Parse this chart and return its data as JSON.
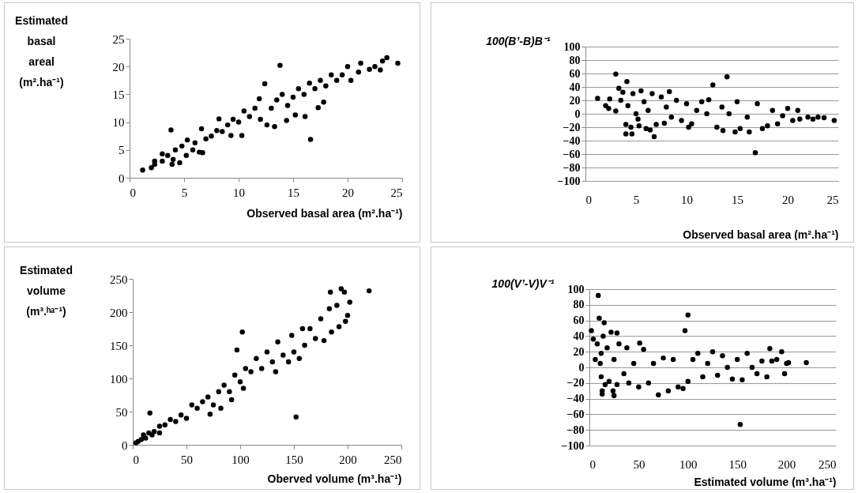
{
  "chart_data": [
    {
      "type": "scatter",
      "xlabel": "Observed basal area (m².ha⁻¹)",
      "ylabel": "Estimated\nbasal\nareal\n(m².ha⁻¹)",
      "xlim": [
        0,
        25
      ],
      "ylim": [
        0,
        25
      ],
      "xticks": [
        0,
        5,
        10,
        15,
        20,
        25
      ],
      "yticks": [
        0,
        5,
        10,
        15,
        20,
        25
      ],
      "grid": false,
      "marker": "circle",
      "series": [
        {
          "color": "#000000",
          "x": [
            1.2,
            2,
            2.3,
            2.3,
            3,
            3,
            3.5,
            3.8,
            3.9,
            4,
            4.2,
            4.6,
            4.8,
            5.2,
            5.3,
            5.8,
            6,
            6.4,
            6.6,
            6.7,
            7,
            7.5,
            8,
            8.2,
            8.5,
            9,
            9.3,
            9.5,
            10,
            10.3,
            10.5,
            11,
            11.5,
            11.9,
            12,
            12.4,
            12.6,
            13,
            13.3,
            13.5,
            13.8,
            14,
            14.4,
            14.5,
            15,
            15.2,
            15.5,
            16,
            16.1,
            16.5,
            16.6,
            17,
            17.3,
            17.5,
            17.8,
            18,
            18.5,
            19,
            19.5,
            20,
            20.3,
            21,
            21.2,
            22,
            22.5,
            23,
            23.2,
            23.6,
            24.6
          ],
          "values": [
            1.4,
            1.8,
            2.4,
            3,
            3,
            4.3,
            4,
            8.6,
            2.4,
            3.3,
            5,
            2.7,
            5.7,
            4,
            6.8,
            5,
            6.3,
            4.6,
            8.8,
            4.5,
            7,
            7.5,
            8.5,
            10.6,
            8.3,
            9.5,
            7.6,
            10.5,
            10,
            7.6,
            12,
            11,
            12.5,
            14.2,
            10.5,
            16.9,
            9.5,
            12.5,
            9.2,
            14,
            20.2,
            15,
            10.3,
            13,
            14.5,
            11.3,
            16,
            15,
            11,
            17,
            6.9,
            16,
            12.6,
            17.5,
            13.6,
            16.5,
            18.5,
            17.5,
            18.5,
            20,
            17.5,
            19,
            20.6,
            19.5,
            20,
            19.4,
            21,
            21.6,
            20.6
          ]
        }
      ]
    },
    {
      "type": "scatter",
      "xlabel": "Observed basal area (m².ha⁻¹)",
      "ylabel": "100(B’-B)B⁻¹",
      "xlim": [
        0,
        25
      ],
      "ylim": [
        -100,
        100
      ],
      "xticks": [
        0,
        5,
        10,
        15,
        20,
        25
      ],
      "yticks": [
        -100,
        -80,
        -60,
        -40,
        -20,
        0,
        20,
        40,
        60,
        80,
        100
      ],
      "grid": "y",
      "marker": "circle",
      "series": [
        {
          "color": "#000000",
          "x": [
            1.2,
            2,
            2.3,
            2.4,
            3,
            3,
            3.3,
            3.5,
            3.7,
            4,
            4,
            4.1,
            4.2,
            4.5,
            4.6,
            4.7,
            5,
            5.2,
            5.3,
            5.5,
            5.8,
            6,
            6.2,
            6.4,
            6.6,
            6.8,
            7,
            7.5,
            7.8,
            8,
            8.3,
            8.5,
            9,
            9.5,
            10,
            10.2,
            10.5,
            11,
            11.5,
            12,
            12.2,
            12.6,
            13,
            13.5,
            13.6,
            14,
            14.2,
            14.8,
            15,
            15.3,
            16,
            16.2,
            16.8,
            17,
            17.5,
            18,
            18.5,
            19,
            19.5,
            20,
            20.5,
            21,
            21.2,
            22,
            22.5,
            23,
            23.6,
            24.6
          ],
          "values": [
            23,
            12,
            8,
            22,
            4,
            59,
            38,
            20,
            32,
            -30,
            -16,
            48,
            12,
            -20,
            -30,
            30,
            0,
            -8,
            -18,
            34,
            18,
            -22,
            5,
            -24,
            30,
            -34,
            -16,
            25,
            -14,
            10,
            33,
            -5,
            20,
            -10,
            15,
            -20,
            -15,
            5,
            18,
            0,
            21,
            43,
            -20,
            10,
            -25,
            55,
            0,
            -27,
            18,
            -22,
            -5,
            -27,
            -58,
            15,
            -22,
            -18,
            5,
            -15,
            -3,
            8,
            -10,
            5,
            -8,
            -5,
            -8,
            -5,
            -6,
            -10
          ]
        }
      ]
    },
    {
      "type": "scatter",
      "xlabel": "Oberved volume (m³.ha⁻¹)",
      "ylabel": "Estimated\nvolume\n(m³.ʰᵃ⁻¹)",
      "xlim": [
        0,
        250
      ],
      "ylim": [
        0,
        250
      ],
      "xticks": [
        0,
        50,
        100,
        150,
        200,
        250
      ],
      "yticks": [
        0,
        50,
        100,
        150,
        200,
        250
      ],
      "grid": false,
      "marker": "circle",
      "series": [
        {
          "color": "#000000",
          "x": [
            3,
            5,
            8,
            10,
            12,
            15,
            16,
            18,
            20,
            25,
            25,
            30,
            35,
            40,
            45,
            50,
            55,
            60,
            65,
            70,
            72,
            75,
            80,
            82,
            85,
            90,
            92,
            95,
            97,
            100,
            102,
            103,
            105,
            110,
            115,
            120,
            125,
            130,
            133,
            135,
            140,
            145,
            148,
            150,
            152,
            155,
            158,
            160,
            165,
            170,
            175,
            178,
            183,
            184,
            185,
            190,
            192,
            194,
            197,
            198,
            200,
            202,
            220
          ],
          "values": [
            3,
            5,
            8,
            15,
            10,
            18,
            48,
            15,
            20,
            18,
            28,
            30,
            38,
            35,
            45,
            40,
            60,
            55,
            65,
            72,
            46,
            60,
            80,
            55,
            90,
            80,
            68,
            105,
            143,
            95,
            170,
            85,
            115,
            110,
            130,
            115,
            140,
            125,
            110,
            155,
            135,
            125,
            165,
            140,
            42,
            130,
            175,
            150,
            175,
            160,
            190,
            157,
            205,
            230,
            170,
            210,
            178,
            235,
            230,
            186,
            195,
            215,
            232
          ]
        }
      ]
    },
    {
      "type": "scatter",
      "xlabel": "Estimated volume (m³.ha⁻¹)",
      "ylabel": "100(V’-V)V⁻¹",
      "xlim": [
        0,
        250
      ],
      "ylim": [
        -100,
        100
      ],
      "xticks": [
        0,
        50,
        100,
        150,
        200,
        250
      ],
      "yticks": [
        -100,
        -80,
        -60,
        -40,
        -20,
        0,
        20,
        40,
        60,
        80,
        100
      ],
      "grid": "y",
      "marker": "circle",
      "series": [
        {
          "color": "#000000",
          "x": [
            2,
            4,
            6,
            8,
            9,
            10,
            11,
            12,
            12,
            13,
            13,
            14,
            15,
            16,
            18,
            20,
            22,
            24,
            25,
            25,
            28,
            28,
            30,
            35,
            38,
            40,
            45,
            50,
            51,
            55,
            60,
            65,
            70,
            75,
            80,
            85,
            90,
            95,
            97,
            100,
            100,
            105,
            110,
            115,
            120,
            125,
            130,
            135,
            140,
            145,
            150,
            153,
            155,
            160,
            165,
            170,
            175,
            180,
            183,
            185,
            190,
            195,
            198,
            200,
            202,
            220
          ],
          "values": [
            47,
            36,
            10,
            30,
            92,
            63,
            5,
            -12,
            18,
            -30,
            -34,
            40,
            57,
            -22,
            25,
            -18,
            45,
            -30,
            -36,
            10,
            44,
            -22,
            30,
            -8,
            25,
            -20,
            5,
            -25,
            31,
            23,
            -20,
            5,
            -35,
            12,
            -30,
            10,
            -25,
            -27,
            47,
            67,
            -18,
            10,
            18,
            -12,
            5,
            20,
            -10,
            15,
            0,
            -15,
            10,
            -73,
            -16,
            18,
            0,
            -8,
            8,
            -12,
            24,
            8,
            10,
            20,
            -8,
            5,
            6,
            6
          ]
        }
      ]
    }
  ]
}
